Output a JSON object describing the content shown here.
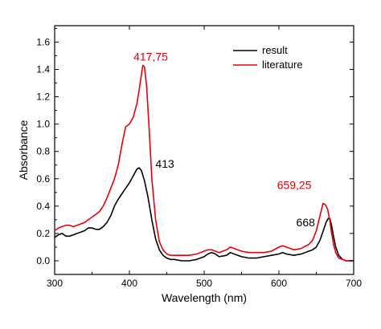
{
  "chart_data": {
    "type": "line",
    "title": "",
    "xlabel": "Wavelength (nm)",
    "ylabel": "Absorbance",
    "xlim": [
      300,
      700
    ],
    "ylim": [
      -0.1,
      1.72
    ],
    "x_ticks": [
      300,
      400,
      500,
      600,
      700
    ],
    "y_ticks": [
      0.0,
      0.2,
      0.4,
      0.6,
      0.8,
      1.0,
      1.2,
      1.4,
      1.6
    ],
    "x_tick_labels": [
      "300",
      "400",
      "500",
      "600",
      "700"
    ],
    "y_tick_labels": [
      "0.0",
      "0.2",
      "0.4",
      "0.6",
      "0.8",
      "1.0",
      "1.2",
      "1.4",
      "1.6"
    ],
    "grid": false,
    "legend_position": "top-right",
    "colors": {
      "result": "#000000",
      "literature": "#e8000b"
    },
    "series": [
      {
        "name": "result",
        "color": "#000000",
        "x": [
          300,
          305,
          310,
          315,
          320,
          325,
          330,
          335,
          340,
          345,
          350,
          355,
          360,
          365,
          370,
          375,
          380,
          385,
          390,
          395,
          400,
          405,
          410,
          413,
          416,
          420,
          425,
          430,
          435,
          440,
          445,
          450,
          455,
          460,
          470,
          480,
          490,
          500,
          505,
          510,
          515,
          520,
          530,
          535,
          540,
          550,
          560,
          570,
          580,
          590,
          600,
          605,
          610,
          620,
          630,
          640,
          645,
          650,
          655,
          660,
          663,
          666,
          668,
          670,
          673,
          676,
          680,
          685,
          690,
          700
        ],
        "y": [
          0.17,
          0.19,
          0.2,
          0.18,
          0.18,
          0.19,
          0.2,
          0.21,
          0.22,
          0.24,
          0.24,
          0.23,
          0.23,
          0.25,
          0.28,
          0.33,
          0.4,
          0.45,
          0.49,
          0.53,
          0.57,
          0.62,
          0.67,
          0.68,
          0.66,
          0.59,
          0.46,
          0.3,
          0.16,
          0.08,
          0.04,
          0.02,
          0.01,
          0.01,
          0.0,
          0.0,
          0.01,
          0.03,
          0.05,
          0.06,
          0.05,
          0.03,
          0.04,
          0.06,
          0.05,
          0.03,
          0.02,
          0.02,
          0.03,
          0.04,
          0.05,
          0.06,
          0.05,
          0.04,
          0.05,
          0.07,
          0.08,
          0.1,
          0.15,
          0.23,
          0.28,
          0.31,
          0.31,
          0.27,
          0.18,
          0.1,
          0.04,
          0.01,
          0.0,
          0.0
        ]
      },
      {
        "name": "literature",
        "color": "#e8000b",
        "x": [
          300,
          305,
          310,
          315,
          320,
          325,
          330,
          335,
          340,
          345,
          350,
          355,
          360,
          365,
          370,
          375,
          380,
          385,
          390,
          395,
          400,
          405,
          410,
          413,
          416,
          418,
          420,
          423,
          426,
          430,
          435,
          440,
          445,
          450,
          455,
          460,
          470,
          480,
          490,
          500,
          505,
          510,
          515,
          520,
          530,
          535,
          540,
          550,
          560,
          570,
          580,
          590,
          600,
          605,
          610,
          620,
          630,
          640,
          645,
          650,
          655,
          659,
          662,
          665,
          668,
          670,
          673,
          676,
          680,
          685,
          690,
          700
        ],
        "y": [
          0.22,
          0.24,
          0.25,
          0.26,
          0.26,
          0.25,
          0.26,
          0.27,
          0.28,
          0.3,
          0.32,
          0.34,
          0.36,
          0.4,
          0.46,
          0.53,
          0.6,
          0.7,
          0.85,
          0.98,
          1.0,
          1.05,
          1.15,
          1.25,
          1.36,
          1.43,
          1.42,
          1.28,
          1.0,
          0.6,
          0.3,
          0.14,
          0.08,
          0.05,
          0.04,
          0.04,
          0.04,
          0.04,
          0.05,
          0.07,
          0.08,
          0.08,
          0.07,
          0.06,
          0.08,
          0.1,
          0.09,
          0.07,
          0.06,
          0.06,
          0.06,
          0.07,
          0.1,
          0.11,
          0.1,
          0.08,
          0.09,
          0.12,
          0.15,
          0.22,
          0.33,
          0.42,
          0.41,
          0.38,
          0.3,
          0.22,
          0.12,
          0.06,
          0.02,
          0.01,
          0.0,
          0.0
        ]
      }
    ],
    "annotations": [
      {
        "text": "417,75",
        "color": "#e8000b",
        "x": 417.75,
        "y": 1.43
      },
      {
        "text": "413",
        "color": "#000000",
        "x": 413,
        "y": 0.68
      },
      {
        "text": "659,25",
        "color": "#e8000b",
        "x": 659.25,
        "y": 0.42
      },
      {
        "text": "668",
        "color": "#000000",
        "x": 668,
        "y": 0.31
      }
    ]
  }
}
